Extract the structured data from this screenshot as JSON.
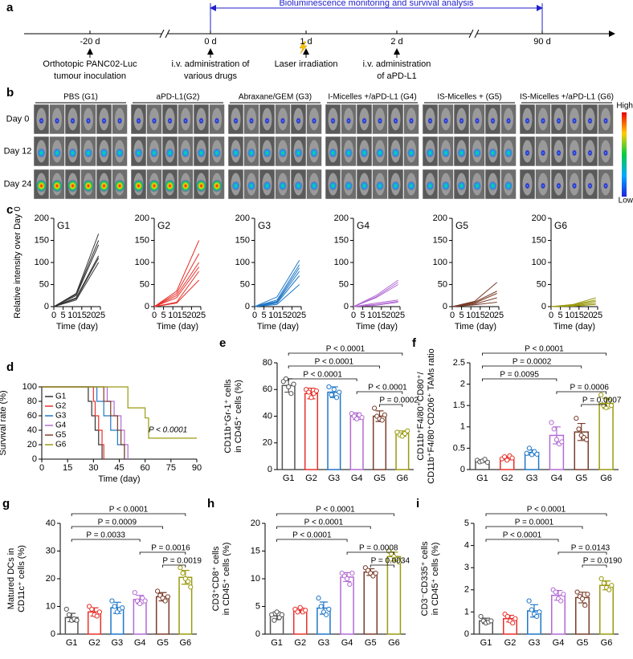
{
  "timeline": {
    "panel": "a",
    "title": "Bioluminescence monitoring and survival analysis",
    "timepoints": [
      {
        "label": "-20 d",
        "desc": [
          "Orthotopic PANC02-Luc",
          "tumour inoculation"
        ]
      },
      {
        "label": "0 d",
        "desc": [
          "i.v. administration of",
          "various drugs"
        ]
      },
      {
        "label": "1 d",
        "desc": [
          "Laser irradiation"
        ]
      },
      {
        "label": "2 d",
        "desc": [
          "i.v. administration",
          "of aPD-L1"
        ]
      },
      {
        "label": "90 d",
        "desc": []
      }
    ]
  },
  "imaging": {
    "panel": "b",
    "groups": [
      "PBS (G1)",
      "aPD-L1(G2)",
      "Abraxane/GEM (G3)",
      "I-Micelles +/aPD-L1 (G4)",
      "IS-Micelles + (G5)",
      "IS-Micelles +/aPD-L1 (G6)"
    ],
    "rows": [
      "Day 0",
      "Day 12",
      "Day 24"
    ],
    "high": "High",
    "low": "Low"
  },
  "chart_data": [
    {
      "type": "line",
      "panel": "c",
      "title": "G1",
      "ylabel": "Relative intensity over Day 0",
      "xlabel": "Time (day)",
      "color": "#333333",
      "x": [
        0,
        12,
        24
      ],
      "xlim": [
        0,
        25
      ],
      "xticks": [
        0,
        5,
        10,
        15,
        20,
        25
      ],
      "ylim": [
        0,
        200
      ],
      "yticks": [
        0,
        50,
        100,
        150,
        200
      ],
      "series": [
        {
          "values": [
            0,
            30,
            165
          ]
        },
        {
          "values": [
            0,
            28,
            150
          ]
        },
        {
          "values": [
            0,
            25,
            140
          ]
        },
        {
          "values": [
            0,
            20,
            115
          ]
        },
        {
          "values": [
            0,
            18,
            110
          ]
        },
        {
          "values": [
            0,
            15,
            100
          ]
        }
      ]
    },
    {
      "type": "line",
      "title": "G2",
      "xlabel": "Time (day)",
      "color": "#e8302a",
      "x": [
        0,
        12,
        24
      ],
      "xlim": [
        0,
        25
      ],
      "xticks": [
        0,
        5,
        10,
        15,
        20,
        25
      ],
      "ylim": [
        0,
        200
      ],
      "yticks": [
        0,
        50,
        100,
        150,
        200
      ],
      "series": [
        {
          "values": [
            0,
            35,
            150
          ]
        },
        {
          "values": [
            0,
            30,
            120
          ]
        },
        {
          "values": [
            0,
            25,
            100
          ]
        },
        {
          "values": [
            0,
            20,
            90
          ]
        },
        {
          "values": [
            0,
            10,
            80
          ]
        },
        {
          "values": [
            0,
            8,
            60
          ]
        }
      ]
    },
    {
      "type": "line",
      "title": "G3",
      "xlabel": "Time (day)",
      "color": "#1f77c8",
      "x": [
        0,
        12,
        24
      ],
      "xlim": [
        0,
        25
      ],
      "xticks": [
        0,
        5,
        10,
        15,
        20,
        25
      ],
      "ylim": [
        0,
        200
      ],
      "yticks": [
        0,
        50,
        100,
        150,
        200
      ],
      "series": [
        {
          "values": [
            0,
            22,
            105
          ]
        },
        {
          "values": [
            0,
            15,
            95
          ]
        },
        {
          "values": [
            0,
            12,
            88
          ]
        },
        {
          "values": [
            0,
            10,
            80
          ]
        },
        {
          "values": [
            0,
            8,
            70
          ]
        },
        {
          "values": [
            0,
            5,
            50
          ]
        }
      ]
    },
    {
      "type": "line",
      "title": "G4",
      "xlabel": "Time (day)",
      "color": "#b36ad4",
      "x": [
        0,
        12,
        24
      ],
      "xlim": [
        0,
        25
      ],
      "xticks": [
        0,
        5,
        10,
        15,
        20,
        25
      ],
      "ylim": [
        0,
        200
      ],
      "yticks": [
        0,
        50,
        100,
        150,
        200
      ],
      "series": [
        {
          "values": [
            0,
            25,
            60
          ]
        },
        {
          "values": [
            0,
            22,
            55
          ]
        },
        {
          "values": [
            0,
            20,
            50
          ]
        },
        {
          "values": [
            0,
            8,
            15
          ]
        },
        {
          "values": [
            0,
            5,
            12
          ]
        },
        {
          "values": [
            0,
            3,
            10
          ]
        }
      ]
    },
    {
      "type": "line",
      "title": "G5",
      "xlabel": "Time (day)",
      "color": "#7a3d2b",
      "x": [
        0,
        12,
        24
      ],
      "xlim": [
        0,
        25
      ],
      "xticks": [
        0,
        5,
        10,
        15,
        20,
        25
      ],
      "ylim": [
        0,
        200
      ],
      "yticks": [
        0,
        50,
        100,
        150,
        200
      ],
      "series": [
        {
          "values": [
            0,
            12,
            55
          ]
        },
        {
          "values": [
            0,
            10,
            35
          ]
        },
        {
          "values": [
            0,
            8,
            30
          ]
        },
        {
          "values": [
            0,
            6,
            20
          ]
        },
        {
          "values": [
            0,
            4,
            10
          ]
        }
      ]
    },
    {
      "type": "line",
      "title": "G6",
      "xlabel": "Time (day)",
      "color": "#9a9a10",
      "x": [
        0,
        12,
        24
      ],
      "xlim": [
        0,
        25
      ],
      "xticks": [
        0,
        5,
        10,
        15,
        20,
        25
      ],
      "ylim": [
        0,
        200
      ],
      "yticks": [
        0,
        50,
        100,
        150,
        200
      ],
      "series": [
        {
          "values": [
            0,
            5,
            20
          ]
        },
        {
          "values": [
            0,
            4,
            15
          ]
        },
        {
          "values": [
            0,
            3,
            12
          ]
        },
        {
          "values": [
            0,
            2,
            8
          ]
        },
        {
          "values": [
            0,
            1,
            5
          ]
        }
      ]
    },
    {
      "type": "survival",
      "panel": "d",
      "xlabel": "Time (day)",
      "ylabel": "Survival rate (%)",
      "annotation": "P < 0.0001",
      "xlim": [
        0,
        90
      ],
      "xticks": [
        0,
        15,
        30,
        45,
        60,
        75,
        90
      ],
      "ylim": [
        0,
        100
      ],
      "yticks": [
        0,
        20,
        40,
        60,
        80,
        100
      ],
      "series": [
        {
          "name": "G1",
          "color": "#333333",
          "x": [
            0,
            27,
            29,
            31,
            33,
            35
          ],
          "values": [
            100,
            80,
            60,
            40,
            20,
            0
          ]
        },
        {
          "name": "G2",
          "color": "#e8302a",
          "x": [
            0,
            30,
            31,
            33,
            35,
            36
          ],
          "values": [
            100,
            80,
            60,
            40,
            20,
            0
          ]
        },
        {
          "name": "G3",
          "color": "#1f77c8",
          "x": [
            0,
            32,
            36,
            40,
            44,
            48
          ],
          "values": [
            100,
            80,
            60,
            40,
            20,
            0
          ]
        },
        {
          "name": "G4",
          "color": "#b36ad4",
          "x": [
            0,
            38,
            42,
            46,
            48,
            50
          ],
          "values": [
            100,
            80,
            60,
            40,
            20,
            0
          ]
        },
        {
          "name": "G5",
          "color": "#7a3d2b",
          "x": [
            0,
            36,
            40,
            44,
            46,
            48
          ],
          "values": [
            100,
            80,
            60,
            40,
            20,
            0
          ]
        },
        {
          "name": "G6",
          "color": "#9a9a10",
          "x": [
            0,
            50,
            60,
            62,
            90
          ],
          "values": [
            100,
            71,
            57,
            29,
            29
          ]
        }
      ]
    },
    {
      "type": "dotbar",
      "panel": "e",
      "ylabel": [
        "CD11b⁺Gr-1⁺ cells",
        "in CD45⁺ cells (%)"
      ],
      "categories": [
        "G1",
        "G2",
        "G3",
        "G4",
        "G5",
        "G6"
      ],
      "colors": [
        "#555555",
        "#e8302a",
        "#1f77c8",
        "#b36ad4",
        "#7a3d2b",
        "#9a9a10"
      ],
      "ylim": [
        0,
        80
      ],
      "yticks": [
        0,
        20,
        40,
        60,
        80
      ],
      "values": [
        63,
        57,
        58,
        40,
        40,
        27
      ],
      "errors": [
        5,
        4,
        4,
        2.5,
        4,
        2
      ],
      "points": [
        [
          66,
          68,
          62,
          57,
          64
        ],
        [
          60,
          58,
          54,
          57,
          59
        ],
        [
          62,
          56,
          60,
          54,
          58
        ],
        [
          42,
          40,
          38,
          41,
          39
        ],
        [
          46,
          40,
          38,
          37,
          41
        ],
        [
          28,
          26,
          25,
          27,
          29
        ]
      ],
      "comparisons": [
        {
          "pair": [
            "G1",
            "G6"
          ],
          "label": "P < 0.0001"
        },
        {
          "pair": [
            "G1",
            "G5"
          ],
          "label": "P < 0.0001"
        },
        {
          "pair": [
            "G1",
            "G4"
          ],
          "label": "P < 0.0001"
        },
        {
          "pair": [
            "G4",
            "G6"
          ],
          "label": "P < 0.0001"
        },
        {
          "pair": [
            "G5",
            "G6"
          ],
          "label": "P = 0.0002"
        }
      ]
    },
    {
      "type": "dotbar",
      "panel": "f",
      "ylabel": [
        "CD11b⁺F4/80⁺CD80⁺/",
        "CD11b⁺F4/80⁺CD206⁺ TAMs ratio"
      ],
      "categories": [
        "G1",
        "G2",
        "G3",
        "G4",
        "G5",
        "G6"
      ],
      "colors": [
        "#555555",
        "#e8302a",
        "#1f77c8",
        "#b36ad4",
        "#7a3d2b",
        "#9a9a10"
      ],
      "ylim": [
        0,
        2.5
      ],
      "yticks": [
        0,
        0.5,
        1,
        1.5,
        2,
        2.5
      ],
      "values": [
        0.2,
        0.27,
        0.4,
        0.8,
        0.88,
        1.55
      ],
      "errors": [
        0.03,
        0.04,
        0.06,
        0.2,
        0.2,
        0.12
      ],
      "points": [
        [
          0.22,
          0.18,
          0.2,
          0.24,
          0.17
        ],
        [
          0.25,
          0.3,
          0.22,
          0.32,
          0.27
        ],
        [
          0.38,
          0.5,
          0.35,
          0.42,
          0.36
        ],
        [
          1.1,
          0.95,
          0.7,
          0.6,
          0.65
        ],
        [
          1.2,
          0.95,
          0.8,
          0.75,
          0.7
        ],
        [
          1.75,
          1.5,
          1.45,
          1.6,
          1.5
        ]
      ],
      "comparisons": [
        {
          "pair": [
            "G1",
            "G6"
          ],
          "label": "P < 0.0001"
        },
        {
          "pair": [
            "G1",
            "G5"
          ],
          "label": "P = 0.0002"
        },
        {
          "pair": [
            "G1",
            "G4"
          ],
          "label": "P = 0.0095"
        },
        {
          "pair": [
            "G4",
            "G6"
          ],
          "label": "P = 0.0006"
        },
        {
          "pair": [
            "G5",
            "G6"
          ],
          "label": "P = 0.0007"
        }
      ]
    },
    {
      "type": "dotbar",
      "panel": "g",
      "ylabel": [
        "Matured DCs in",
        "CD11c⁺ cells (%)"
      ],
      "categories": [
        "G1",
        "G2",
        "G3",
        "G4",
        "G5",
        "G6"
      ],
      "colors": [
        "#555555",
        "#e8302a",
        "#1f77c8",
        "#b36ad4",
        "#7a3d2b",
        "#9a9a10"
      ],
      "ylim": [
        0,
        40
      ],
      "yticks": [
        0,
        10,
        20,
        30,
        40
      ],
      "values": [
        6,
        8,
        9.5,
        12.5,
        13.5,
        20.5
      ],
      "errors": [
        1.5,
        1.5,
        2,
        1.5,
        1.5,
        2.5
      ],
      "points": [
        [
          9,
          7,
          5,
          5.5,
          5
        ],
        [
          10,
          9,
          7,
          6.5,
          8
        ],
        [
          12,
          10,
          8,
          9,
          9.5
        ],
        [
          15,
          12,
          11,
          13,
          12
        ],
        [
          15.5,
          14,
          13,
          12,
          13.5
        ],
        [
          24,
          22,
          20,
          19,
          17
        ]
      ],
      "comparisons": [
        {
          "pair": [
            "G1",
            "G6"
          ],
          "label": "P < 0.0001"
        },
        {
          "pair": [
            "G1",
            "G5"
          ],
          "label": "P = 0.0009"
        },
        {
          "pair": [
            "G1",
            "G4"
          ],
          "label": "P = 0.0033"
        },
        {
          "pair": [
            "G4",
            "G6"
          ],
          "label": "P = 0.0016"
        },
        {
          "pair": [
            "G5",
            "G6"
          ],
          "label": "P = 0.0019"
        }
      ]
    },
    {
      "type": "dotbar",
      "panel": "h",
      "ylabel": [
        "CD3⁺CD8⁺ cells",
        "in CD45⁺ cells (%)"
      ],
      "categories": [
        "G1",
        "G2",
        "G3",
        "G4",
        "G5",
        "G6"
      ],
      "colors": [
        "#555555",
        "#e8302a",
        "#1f77c8",
        "#b36ad4",
        "#7a3d2b",
        "#9a9a10"
      ],
      "ylim": [
        0,
        20
      ],
      "yticks": [
        0,
        5,
        10,
        15,
        20
      ],
      "values": [
        3.3,
        4.3,
        4.7,
        10.3,
        11.2,
        14
      ],
      "errors": [
        0.7,
        0.4,
        1.1,
        0.8,
        0.6,
        0.8
      ],
      "points": [
        [
          3.5,
          2.5,
          4,
          3,
          3.5
        ],
        [
          4.5,
          4,
          4.8,
          4,
          4.3
        ],
        [
          6.5,
          5,
          4,
          3.5,
          4.5
        ],
        [
          11,
          10.5,
          10,
          9,
          11
        ],
        [
          12,
          11.5,
          11,
          10.5,
          11
        ],
        [
          15,
          14.5,
          14,
          13.5,
          13
        ]
      ],
      "comparisons": [
        {
          "pair": [
            "G1",
            "G6"
          ],
          "label": "P < 0.0001"
        },
        {
          "pair": [
            "G1",
            "G5"
          ],
          "label": "P < 0.0001"
        },
        {
          "pair": [
            "G1",
            "G4"
          ],
          "label": "P < 0.0001"
        },
        {
          "pair": [
            "G4",
            "G6"
          ],
          "label": "P = 0.0008"
        },
        {
          "pair": [
            "G5",
            "G6"
          ],
          "label": "P = 0.0034"
        }
      ]
    },
    {
      "type": "dotbar",
      "panel": "i",
      "ylabel": [
        "CD3⁻CD335⁺ cells",
        "in CD45⁺ cells (%)"
      ],
      "categories": [
        "G1",
        "G2",
        "G3",
        "G4",
        "G5",
        "G6"
      ],
      "colors": [
        "#555555",
        "#e8302a",
        "#1f77c8",
        "#b36ad4",
        "#7a3d2b",
        "#9a9a10"
      ],
      "ylim": [
        0,
        5
      ],
      "yticks": [
        0,
        1,
        2,
        3,
        4,
        5
      ],
      "values": [
        0.6,
        0.7,
        1.05,
        1.75,
        1.65,
        2.2
      ],
      "errors": [
        0.12,
        0.15,
        0.28,
        0.22,
        0.24,
        0.2
      ],
      "points": [
        [
          0.8,
          0.6,
          0.5,
          0.55,
          0.6
        ],
        [
          0.9,
          0.8,
          0.6,
          0.5,
          0.7
        ],
        [
          1.5,
          1.1,
          0.9,
          0.8,
          1.0
        ],
        [
          2.0,
          1.9,
          1.6,
          1.5,
          1.8
        ],
        [
          1.9,
          1.7,
          1.6,
          1.3,
          1.8
        ],
        [
          2.5,
          2.3,
          2.1,
          2.0,
          2.2
        ]
      ],
      "comparisons": [
        {
          "pair": [
            "G1",
            "G6"
          ],
          "label": "P < 0.0001"
        },
        {
          "pair": [
            "G1",
            "G5"
          ],
          "label": "P = 0.0001"
        },
        {
          "pair": [
            "G1",
            "G4"
          ],
          "label": "P < 0.0001"
        },
        {
          "pair": [
            "G4",
            "G6"
          ],
          "label": "P = 0.0143"
        },
        {
          "pair": [
            "G5",
            "G6"
          ],
          "label": "P = 0.0190"
        }
      ]
    }
  ]
}
